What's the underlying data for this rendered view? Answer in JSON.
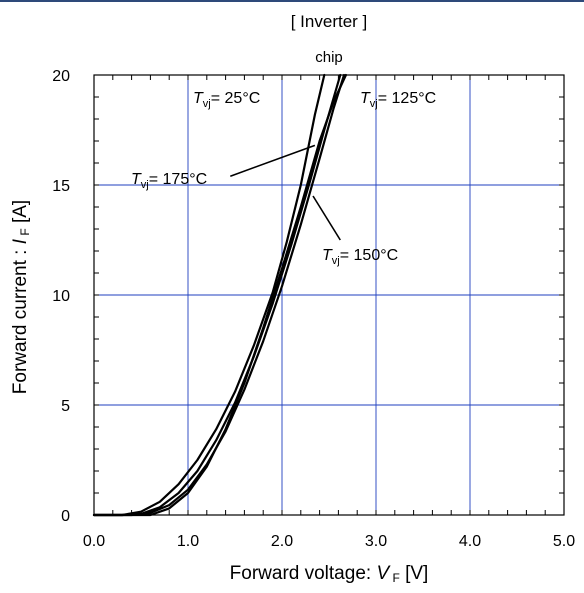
{
  "header": {
    "title": "[ Inverter ]",
    "subtitle": "chip"
  },
  "chart_data": {
    "type": "line",
    "title": "[ Inverter ]",
    "subtitle": "chip",
    "xlabel": {
      "text": "Forward voltage: ",
      "var": "V",
      "sub": "F",
      "unit": " [V]"
    },
    "ylabel": {
      "text": "Forward current : ",
      "var": "I",
      "sub": "F",
      "unit": " [A]"
    },
    "xlim": [
      0.0,
      5.0
    ],
    "ylim": [
      0,
      20
    ],
    "x_ticks": [
      0.0,
      1.0,
      2.0,
      3.0,
      4.0,
      5.0
    ],
    "x_tick_labels": [
      "0.0",
      "1.0",
      "2.0",
      "3.0",
      "4.0",
      "5.0"
    ],
    "y_ticks": [
      0,
      5,
      10,
      15,
      20
    ],
    "y_tick_labels": [
      "0",
      "5",
      "10",
      "15",
      "20"
    ],
    "x_minor_step": 0.2,
    "y_minor_step": 1,
    "grid": true,
    "colors": {
      "grid": "#1f3fbf",
      "line": "#000000",
      "frame": "#000000"
    },
    "series": [
      {
        "name": "Tvj= 25°C",
        "x": [
          0.3,
          0.5,
          0.7,
          0.9,
          1.1,
          1.3,
          1.5,
          1.7,
          1.9,
          2.05,
          2.2,
          2.35,
          2.45
        ],
        "y": [
          0,
          0.15,
          0.6,
          1.4,
          2.5,
          3.9,
          5.6,
          7.7,
          10.1,
          12.4,
          15.0,
          18.2,
          20
        ]
      },
      {
        "name": "Tvj= 125°C",
        "x": [
          0.3,
          0.5,
          0.7,
          0.9,
          1.1,
          1.3,
          1.5,
          1.7,
          1.9,
          2.1,
          2.3,
          2.45,
          2.62
        ],
        "y": [
          0,
          0.05,
          0.35,
          1.0,
          2.0,
          3.4,
          5.1,
          7.2,
          9.6,
          12.3,
          15.2,
          17.5,
          20
        ]
      },
      {
        "name": "Tvj= 150°C",
        "x": [
          0.4,
          0.6,
          0.8,
          1.0,
          1.2,
          1.4,
          1.6,
          1.8,
          2.0,
          2.2,
          2.4,
          2.55,
          2.66
        ],
        "y": [
          0,
          0.1,
          0.45,
          1.15,
          2.3,
          3.8,
          5.7,
          7.9,
          10.4,
          13.2,
          16.2,
          18.5,
          20
        ]
      },
      {
        "name": "Tvj= 175°C",
        "x": [
          0.6,
          0.8,
          1.0,
          1.2,
          1.4,
          1.6,
          1.8,
          2.0,
          2.2,
          2.4,
          2.55,
          2.68
        ],
        "y": [
          0,
          0.3,
          1.0,
          2.2,
          3.9,
          6.0,
          8.5,
          11.2,
          14.0,
          17.0,
          18.8,
          20
        ]
      }
    ],
    "annotations": [
      {
        "var": "T",
        "sub": "vj",
        "text": "= 25°C",
        "series": "Tvj= 25°C",
        "has_leader": false
      },
      {
        "var": "T",
        "sub": "vj",
        "text": "= 125°C",
        "series": "Tvj= 125°C",
        "has_leader": false
      },
      {
        "var": "T",
        "sub": "vj",
        "text": "= 175°C",
        "series": "Tvj= 175°C",
        "has_leader": true,
        "leader_from": [
          1.45,
          15.4
        ],
        "leader_to": [
          2.35,
          16.8
        ]
      },
      {
        "var": "T",
        "sub": "vj",
        "text": "= 150°C",
        "series": "Tvj= 150°C",
        "has_leader": true,
        "leader_from": [
          2.33,
          14.5
        ],
        "leader_to": [
          2.62,
          12.5
        ]
      }
    ]
  }
}
